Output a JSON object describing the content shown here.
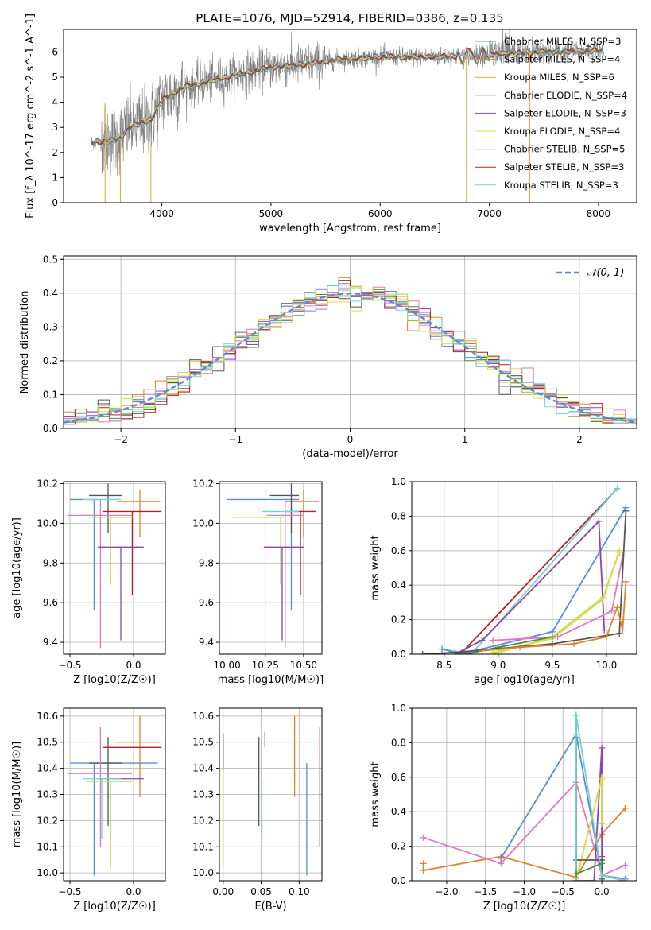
{
  "title": "PLATE=1076, MJD=52914, FIBERID=0386, z=0.135",
  "colors": {
    "Chabrier MILES": "#5b8bd6",
    "Salpeter MILES": "#e0832b",
    "Kroupa MILES": "#e0a030",
    "Chabrier ELODIE": "#4a8a4a",
    "Salpeter ELODIE": "#8e44ad",
    "Kroupa ELODIE": "#e6d84a",
    "Chabrier STELIB": "#555555",
    "Salpeter STELIB": "#b22222",
    "Kroupa STELIB": "#6fd3d8",
    "data": "#7f7f7f",
    "pink": "#e377c2",
    "lime": "#b5e550"
  },
  "chart_data": [
    {
      "id": "spectrum",
      "type": "line",
      "title": "PLATE=1076, MJD=52914, FIBERID=0386, z=0.135",
      "xlabel": "wavelength [Angstrom, rest frame]",
      "ylabel": "Flux [f_λ 10^-17 erg cm^-2 s^-1 A^-1]",
      "xlim": [
        3100,
        8350
      ],
      "ylim": [
        0,
        6.9
      ],
      "xticks": [
        4000,
        5000,
        6000,
        7000,
        8000
      ],
      "yticks": [
        0,
        1,
        2,
        3,
        4,
        5,
        6
      ],
      "grid": false,
      "legend_position": "right",
      "x_start": 3350,
      "x_end": 8050,
      "continuum": [
        [
          3350,
          2.4
        ],
        [
          3600,
          2.5
        ],
        [
          3700,
          3.0
        ],
        [
          3900,
          3.3
        ],
        [
          4000,
          4.1
        ],
        [
          4200,
          4.6
        ],
        [
          4500,
          4.9
        ],
        [
          4800,
          5.2
        ],
        [
          5000,
          5.4
        ],
        [
          5300,
          5.5
        ],
        [
          5600,
          5.7
        ],
        [
          6000,
          5.8
        ],
        [
          6500,
          5.8
        ],
        [
          7000,
          5.9
        ],
        [
          7500,
          6.0
        ],
        [
          8000,
          6.05
        ]
      ],
      "legend": [
        {
          "label": "Chabrier MILES, N_SSP=3",
          "color": "#5b8bd6"
        },
        {
          "label": "Salpeter MILES, N_SSP=4",
          "color": "#e0832b"
        },
        {
          "label": "Kroupa MILES, N_SSP=6",
          "color": "#e0a030"
        },
        {
          "label": "Chabrier ELODIE, N_SSP=4",
          "color": "#4a8a4a"
        },
        {
          "label": "Salpeter ELODIE, N_SSP=3",
          "color": "#8e44ad"
        },
        {
          "label": "Kroupa ELODIE, N_SSP=4",
          "color": "#e6d84a"
        },
        {
          "label": "Chabrier STELIB, N_SSP=5",
          "color": "#555555"
        },
        {
          "label": "Salpeter STELIB, N_SSP=3",
          "color": "#b22222"
        },
        {
          "label": "Kroupa STELIB, N_SSP=3",
          "color": "#6fd3d8"
        }
      ]
    },
    {
      "id": "residuals",
      "type": "line",
      "xlabel": "(data-model)/error",
      "ylabel": "Normed distribution",
      "xlim": [
        -2.5,
        2.5
      ],
      "ylim": [
        0,
        0.51
      ],
      "xticks": [
        -2,
        -1,
        0,
        1,
        2
      ],
      "yticks": [
        0.0,
        0.1,
        0.2,
        0.3,
        0.4,
        0.5
      ],
      "grid": true,
      "legend": {
        "label": "𝒩(0, 1)",
        "color": "#5b8bd6",
        "position": "upper-right"
      },
      "bin_width": 0.1,
      "series_colors": [
        "#5b8bd6",
        "#e0832b",
        "#4a8a4a",
        "#8e44ad",
        "#e6d84a",
        "#555555",
        "#b22222",
        "#6fd3d8",
        "#e377c2",
        "#b5e550"
      ]
    },
    {
      "id": "age_vs_Z",
      "type": "scatter",
      "xlabel": "Z [log10(Z/Z☉)]",
      "ylabel": "age  [log10(age/yr)]",
      "xlim": [
        -0.55,
        0.25
      ],
      "ylim": [
        9.34,
        10.21
      ],
      "xticks": [
        -0.5,
        0.0
      ],
      "yticks": [
        9.4,
        9.6,
        9.8,
        10.0,
        10.2
      ],
      "grid": true,
      "errorbars": [
        {
          "color": "#5b8bd6",
          "x": -0.31,
          "xerr": [
            0.19,
            0.05
          ],
          "y": 10.12,
          "yerr": [
            0.56,
            0.0
          ]
        },
        {
          "color": "#e0832b",
          "x": 0.05,
          "xerr": [
            0.18,
            0.16
          ],
          "y": 10.11,
          "yerr": [
            0.18,
            0.06
          ]
        },
        {
          "color": "#555555",
          "x": -0.2,
          "xerr": [
            0.15,
            0.11
          ],
          "y": 10.14,
          "yerr": [
            0.19,
            0.06
          ]
        },
        {
          "color": "#b22222",
          "x": -0.01,
          "xerr": [
            0.23,
            0.23
          ],
          "y": 10.06,
          "yerr": [
            0.42,
            0.0
          ]
        },
        {
          "color": "#e377c2",
          "x": -0.26,
          "xerr": [
            0.26,
            0.25
          ],
          "y": 10.04,
          "yerr": [
            0.67,
            0.08
          ]
        },
        {
          "color": "#b5e550",
          "x": -0.18,
          "xerr": [
            0.18,
            0.18
          ],
          "y": 10.03,
          "yerr": [
            0.34,
            0.0
          ]
        },
        {
          "color": "#8e44ad",
          "x": -0.1,
          "xerr": [
            0.18,
            0.18
          ],
          "y": 9.88,
          "yerr": [
            0.47,
            0.0
          ]
        },
        {
          "color": "#6fd3d8",
          "x": -0.25,
          "xerr": [
            0.15,
            0.15
          ],
          "y": 10.12,
          "yerr": [
            0.0,
            0.0
          ]
        }
      ]
    },
    {
      "id": "age_vs_mass",
      "type": "scatter",
      "xlabel": "mass [log10(M/M☉)]",
      "ylabel": "",
      "xlim": [
        9.95,
        10.62
      ],
      "ylim": [
        9.34,
        10.21
      ],
      "xticks": [
        10.0,
        10.25,
        10.5
      ],
      "yticks": [
        9.4,
        9.6,
        9.8,
        10.0,
        10.2
      ],
      "grid": true,
      "errorbars": [
        {
          "color": "#5b8bd6",
          "x": 10.42,
          "xerr": [
            0.42,
            0.05
          ],
          "y": 10.12,
          "yerr": [
            0.56,
            0.0
          ]
        },
        {
          "color": "#e0832b",
          "x": 10.5,
          "xerr": [
            0.12,
            0.1
          ],
          "y": 10.11,
          "yerr": [
            0.18,
            0.06
          ]
        },
        {
          "color": "#555555",
          "x": 10.42,
          "xerr": [
            0.14,
            0.05
          ],
          "y": 10.14,
          "yerr": [
            0.19,
            0.06
          ]
        },
        {
          "color": "#b22222",
          "x": 10.48,
          "xerr": [
            0.1,
            0.1
          ],
          "y": 10.06,
          "yerr": [
            0.42,
            0.0
          ]
        },
        {
          "color": "#e377c2",
          "x": 10.38,
          "xerr": [
            0.12,
            0.12
          ],
          "y": 10.04,
          "yerr": [
            0.67,
            0.08
          ]
        },
        {
          "color": "#b5e550",
          "x": 10.35,
          "xerr": [
            0.32,
            0.04
          ],
          "y": 10.03,
          "yerr": [
            0.34,
            0.0
          ]
        },
        {
          "color": "#8e44ad",
          "x": 10.36,
          "xerr": [
            0.12,
            0.14
          ],
          "y": 9.88,
          "yerr": [
            0.47,
            0.0
          ]
        },
        {
          "color": "#6fd3d8",
          "x": 10.35,
          "xerr": [
            0.12,
            0.12
          ],
          "y": 10.06,
          "yerr": [
            0.0,
            0.0
          ]
        }
      ]
    },
    {
      "id": "weight_vs_age",
      "type": "line",
      "xlabel": "age  [log10(age/yr)]",
      "ylabel": "mass weight",
      "xlim": [
        8.2,
        10.28
      ],
      "ylim": [
        0,
        1.0
      ],
      "xticks": [
        8.5,
        9.0,
        9.5,
        10.0
      ],
      "yticks": [
        0.0,
        0.2,
        0.4,
        0.6,
        0.8,
        1.0
      ],
      "grid": true,
      "series": [
        {
          "color": "#b22222",
          "x": [
            8.65,
            10.1
          ],
          "y": [
            0.0,
            0.96
          ]
        },
        {
          "color": "#6fd3d8",
          "x": [
            8.48,
            8.75,
            10.1
          ],
          "y": [
            0.03,
            0.0,
            0.96
          ]
        },
        {
          "color": "#5b8bd6",
          "x": [
            8.48,
            8.65,
            9.5,
            10.18
          ],
          "y": [
            0.03,
            0.0,
            0.13,
            0.85
          ]
        },
        {
          "color": "#8e44ad",
          "x": [
            8.6,
            8.85,
            9.93,
            9.98
          ],
          "y": [
            0.0,
            0.08,
            0.77,
            0.14
          ]
        },
        {
          "color": "#b5e550",
          "x": [
            8.95,
            9.5,
            9.97,
            10.12
          ],
          "y": [
            0.0,
            0.1,
            0.33,
            0.6
          ]
        },
        {
          "color": "#e6d84a",
          "x": [
            8.95,
            9.5,
            9.97,
            10.12
          ],
          "y": [
            0.01,
            0.09,
            0.32,
            0.59
          ]
        },
        {
          "color": "#e377c2",
          "x": [
            8.95,
            9.55,
            10.05,
            10.15
          ],
          "y": [
            0.08,
            0.1,
            0.25,
            0.57
          ]
        },
        {
          "color": "#4a8a4a",
          "x": [
            8.7,
            9.0,
            9.5
          ],
          "y": [
            0.0,
            0.04,
            0.1
          ]
        },
        {
          "color": "#555555",
          "x": [
            8.3,
            8.6,
            9.5,
            10.12,
            10.18
          ],
          "y": [
            0.0,
            0.01,
            0.06,
            0.12,
            0.83
          ]
        },
        {
          "color": "#e0832b",
          "x": [
            8.85,
            9.2,
            9.7,
            10.0,
            10.1,
            10.15,
            10.18
          ],
          "y": [
            0.02,
            0.04,
            0.06,
            0.1,
            0.27,
            0.14,
            0.42
          ]
        }
      ]
    },
    {
      "id": "mass_vs_Z",
      "type": "scatter",
      "xlabel": "Z [log10(Z/Z☉)]",
      "ylabel": "mass [log10(M/M☉)]",
      "xlim": [
        -0.55,
        0.25
      ],
      "ylim": [
        9.97,
        10.63
      ],
      "xticks": [
        -0.5,
        0.0
      ],
      "yticks": [
        10.0,
        10.1,
        10.2,
        10.3,
        10.4,
        10.5,
        10.6
      ],
      "grid": true,
      "errorbars": [
        {
          "color": "#5b8bd6",
          "x": -0.31,
          "xerr": [
            0.19,
            0.5
          ],
          "y": 10.42,
          "yerr": [
            0.43,
            0.0
          ]
        },
        {
          "color": "#e0832b",
          "x": 0.05,
          "xerr": [
            0.18,
            0.16
          ],
          "y": 10.5,
          "yerr": [
            0.21,
            0.1
          ]
        },
        {
          "color": "#555555",
          "x": -0.2,
          "xerr": [
            0.15,
            0.11
          ],
          "y": 10.42,
          "yerr": [
            0.24,
            0.1
          ]
        },
        {
          "color": "#b22222",
          "x": -0.01,
          "xerr": [
            0.23,
            0.23
          ],
          "y": 10.48,
          "yerr": [
            0.0,
            0.0
          ]
        },
        {
          "color": "#e377c2",
          "x": -0.26,
          "xerr": [
            0.26,
            0.25
          ],
          "y": 10.38,
          "yerr": [
            0.28,
            0.18
          ]
        },
        {
          "color": "#b5e550",
          "x": -0.18,
          "xerr": [
            0.18,
            0.18
          ],
          "y": 10.35,
          "yerr": [
            0.33,
            0.0
          ]
        },
        {
          "color": "#8e44ad",
          "x": -0.1,
          "xerr": [
            0.18,
            0.18
          ],
          "y": 10.36,
          "yerr": [
            0.0,
            0.0
          ]
        },
        {
          "color": "#6fd3d8",
          "x": -0.25,
          "xerr": [
            0.15,
            0.15
          ],
          "y": 10.36,
          "yerr": [
            0.23,
            0.0
          ]
        }
      ]
    },
    {
      "id": "mass_vs_EBV",
      "type": "scatter",
      "xlabel": "E(B-V)",
      "ylabel": "",
      "xlim": [
        -0.005,
        0.13
      ],
      "ylim": [
        9.97,
        10.63
      ],
      "xticks": [
        0.0,
        0.05,
        0.1
      ],
      "yticks": [
        10.0,
        10.1,
        10.2,
        10.3,
        10.4,
        10.5,
        10.6
      ],
      "grid": true,
      "errorbars": [
        {
          "color": "#8e44ad",
          "x": 0.0,
          "xerr": [
            0.0,
            0.0
          ],
          "y": 10.36,
          "yerr": [
            0.0,
            0.17
          ]
        },
        {
          "color": "#b5e550",
          "x": 0.0,
          "xerr": [
            0.0,
            0.0
          ],
          "y": 10.35,
          "yerr": [
            0.33,
            0.05
          ]
        },
        {
          "color": "#555555",
          "x": 0.047,
          "xerr": [
            0.0,
            0.0
          ],
          "y": 10.42,
          "yerr": [
            0.24,
            0.1
          ]
        },
        {
          "color": "#6fd3d8",
          "x": 0.051,
          "xerr": [
            0.0,
            0.0
          ],
          "y": 10.36,
          "yerr": [
            0.23,
            0.0
          ]
        },
        {
          "color": "#b22222",
          "x": 0.055,
          "xerr": [
            0.0,
            0.0
          ],
          "y": 10.48,
          "yerr": [
            0.0,
            0.06
          ]
        },
        {
          "color": "#e0832b",
          "x": 0.094,
          "xerr": [
            0.0,
            0.0
          ],
          "y": 10.5,
          "yerr": [
            0.21,
            0.1
          ]
        },
        {
          "color": "#5b8bd6",
          "x": 0.11,
          "xerr": [
            0.0,
            0.0
          ],
          "y": 10.42,
          "yerr": [
            0.43,
            0.0
          ]
        },
        {
          "color": "#e377c2",
          "x": 0.127,
          "xerr": [
            0.0,
            0.0
          ],
          "y": 10.38,
          "yerr": [
            0.28,
            0.18
          ]
        }
      ]
    },
    {
      "id": "weight_vs_Z",
      "type": "line",
      "xlabel": "Z [log10(Z/Z☉)]",
      "ylabel": "mass weight",
      "xlim": [
        -2.45,
        0.45
      ],
      "ylim": [
        0,
        1.0
      ],
      "xticks": [
        -2.0,
        -1.5,
        -1.0,
        -0.5,
        0.0
      ],
      "yticks": [
        0.0,
        0.2,
        0.4,
        0.6,
        0.8,
        1.0
      ],
      "grid": true,
      "series": [
        {
          "color": "#e0832b",
          "x": [
            -2.3,
            -2.3,
            -1.3,
            -0.33,
            0.0,
            0.3
          ],
          "y": [
            0.1,
            0.06,
            0.14,
            0.02,
            0.27,
            0.42
          ]
        },
        {
          "color": "#e377c2",
          "x": [
            -2.3,
            -1.3,
            -0.33,
            0.0,
            0.3
          ],
          "y": [
            0.25,
            0.1,
            0.57,
            0.03,
            0.09
          ]
        },
        {
          "color": "#5b8bd6",
          "x": [
            -1.3,
            -0.33,
            0.0,
            0.3
          ],
          "y": [
            0.13,
            0.85,
            0.03,
            0.01
          ]
        },
        {
          "color": "#8e44ad",
          "x": [
            -0.33,
            -0.1,
            0.0,
            0.0
          ],
          "y": [
            0.0,
            0.0,
            0.77,
            0.14
          ]
        },
        {
          "color": "#b5e550",
          "x": [
            -0.33,
            0.0,
            0.0
          ],
          "y": [
            0.0,
            0.6,
            0.33
          ]
        },
        {
          "color": "#e6d84a",
          "x": [
            -0.33,
            0.0
          ],
          "y": [
            0.01,
            0.59
          ]
        },
        {
          "color": "#555555",
          "x": [
            -0.33,
            -0.33,
            -0.33,
            0.0,
            0.0
          ],
          "y": [
            0.0,
            0.83,
            0.12,
            0.12,
            0.01
          ]
        },
        {
          "color": "#b22222",
          "x": [
            -0.33,
            -0.33
          ],
          "y": [
            0.0,
            0.96
          ]
        },
        {
          "color": "#6fd3d8",
          "x": [
            -0.33,
            -0.33,
            0.0,
            0.3
          ],
          "y": [
            0.0,
            0.96,
            0.03,
            0.0
          ]
        },
        {
          "color": "#4a8a4a",
          "x": [
            -0.33,
            0.0
          ],
          "y": [
            0.04,
            0.1
          ]
        }
      ]
    }
  ]
}
